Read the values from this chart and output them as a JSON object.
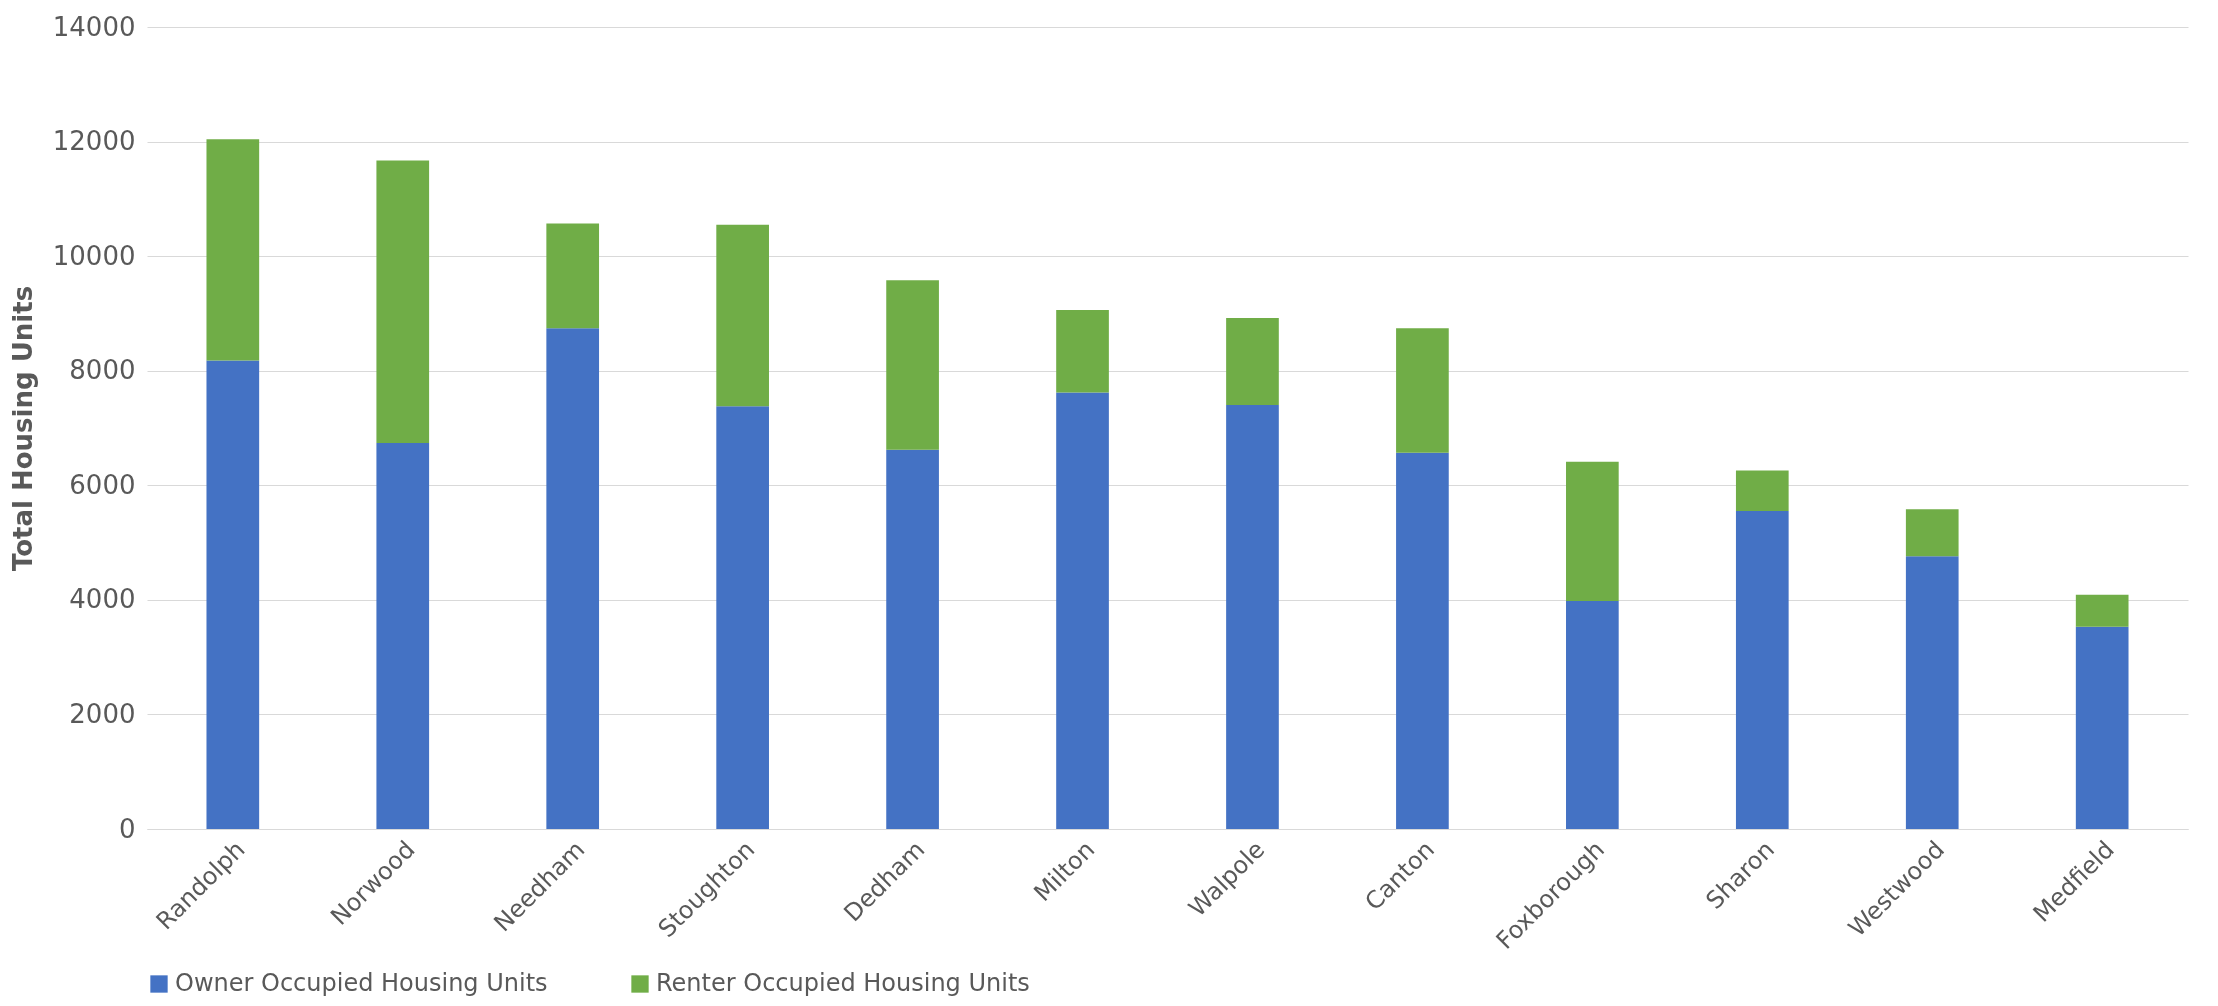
{
  "chart_data": {
    "type": "bar",
    "ylabel": "Total Housing Units",
    "stacked": true,
    "categories": [
      "Randolph",
      "Norwood",
      "Needham",
      "Stoughton",
      "Dedham",
      "Milton",
      "Walpole",
      "Canton",
      "Foxborough",
      "Sharon",
      "Westwood",
      "Medfield"
    ],
    "series": [
      {
        "name": "Owner Occupied Housing Units",
        "color": "#4472c4",
        "values": [
          8180,
          6740,
          8740,
          7380,
          6620,
          7620,
          7400,
          6570,
          3980,
          5550,
          4760,
          3530
        ]
      },
      {
        "name": "Renter Occupied Housing Units",
        "color": "#70ad47",
        "values": [
          3860,
          4930,
          1830,
          3170,
          2960,
          1440,
          1520,
          2170,
          2430,
          710,
          820,
          560
        ]
      }
    ],
    "ylim": [
      0,
      14000
    ],
    "yticks": [
      0,
      2000,
      4000,
      6000,
      8000,
      10000,
      12000,
      14000
    ],
    "grid": "y",
    "legend": "bottom"
  }
}
